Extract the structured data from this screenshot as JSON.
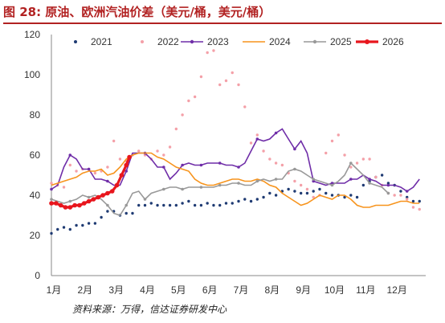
{
  "title": "图 28:  原油、欧洲汽油价差（美元/桶，美元/桶）",
  "source": "资料来源：万得，信达证券研发中心",
  "chart_data": {
    "type": "line",
    "x_ticks": [
      "1月",
      "2月",
      "3月",
      "4月",
      "5月",
      "6月",
      "7月",
      "8月",
      "9月",
      "10月",
      "11月",
      "12月"
    ],
    "ylim": [
      0,
      120
    ],
    "y_ticks": [
      0,
      20,
      40,
      60,
      80,
      100,
      120
    ],
    "grid": false,
    "legend_position": "top",
    "series": [
      {
        "name": "2021",
        "color": "#1f3b73",
        "style": "dots",
        "values": [
          [
            0.0,
            21
          ],
          [
            0.2,
            23
          ],
          [
            0.4,
            24
          ],
          [
            0.6,
            23
          ],
          [
            0.8,
            25
          ],
          [
            1.0,
            25
          ],
          [
            1.2,
            26
          ],
          [
            1.4,
            26
          ],
          [
            1.6,
            29
          ],
          [
            1.8,
            32
          ],
          [
            2.0,
            32
          ],
          [
            2.2,
            30
          ],
          [
            2.4,
            31
          ],
          [
            2.6,
            31
          ],
          [
            2.8,
            35
          ],
          [
            3.0,
            35
          ],
          [
            3.2,
            36
          ],
          [
            3.4,
            35
          ],
          [
            3.6,
            35
          ],
          [
            3.8,
            35
          ],
          [
            4.0,
            35
          ],
          [
            4.2,
            36
          ],
          [
            4.4,
            37
          ],
          [
            4.6,
            35
          ],
          [
            4.8,
            35
          ],
          [
            5.0,
            36
          ],
          [
            5.2,
            35
          ],
          [
            5.4,
            35
          ],
          [
            5.6,
            36
          ],
          [
            5.8,
            36
          ],
          [
            6.0,
            37
          ],
          [
            6.2,
            38
          ],
          [
            6.4,
            37
          ],
          [
            6.6,
            38
          ],
          [
            6.8,
            39
          ],
          [
            7.0,
            41
          ],
          [
            7.2,
            40
          ],
          [
            7.4,
            42
          ],
          [
            7.6,
            43
          ],
          [
            7.8,
            42
          ],
          [
            8.0,
            41
          ],
          [
            8.2,
            41
          ],
          [
            8.4,
            42
          ],
          [
            8.6,
            43
          ],
          [
            8.8,
            41
          ],
          [
            9.0,
            40
          ],
          [
            9.2,
            40
          ],
          [
            9.4,
            39
          ],
          [
            9.6,
            40
          ],
          [
            9.8,
            39
          ],
          [
            10.0,
            45
          ],
          [
            10.2,
            47
          ],
          [
            10.4,
            49
          ],
          [
            10.6,
            50
          ],
          [
            10.8,
            46
          ],
          [
            11.0,
            45
          ],
          [
            11.2,
            42
          ],
          [
            11.4,
            39
          ],
          [
            11.6,
            37
          ],
          [
            11.8,
            37
          ]
        ]
      },
      {
        "name": "2022",
        "color": "#f4a0a8",
        "style": "dots",
        "values": [
          [
            0.0,
            46
          ],
          [
            0.2,
            45
          ],
          [
            0.4,
            44
          ],
          [
            0.6,
            55
          ],
          [
            0.8,
            52
          ],
          [
            1.0,
            53
          ],
          [
            1.2,
            53
          ],
          [
            1.4,
            51
          ],
          [
            1.6,
            52
          ],
          [
            1.8,
            54
          ],
          [
            2.0,
            67
          ],
          [
            2.2,
            58
          ],
          [
            2.4,
            57
          ],
          [
            2.6,
            60
          ],
          [
            2.8,
            62
          ],
          [
            3.0,
            60
          ],
          [
            3.2,
            58
          ],
          [
            3.4,
            62
          ],
          [
            3.6,
            60
          ],
          [
            3.8,
            64
          ],
          [
            4.0,
            73
          ],
          [
            4.2,
            80
          ],
          [
            4.4,
            87
          ],
          [
            4.6,
            89
          ],
          [
            4.8,
            99
          ],
          [
            5.0,
            111
          ],
          [
            5.2,
            112
          ],
          [
            5.4,
            95
          ],
          [
            5.6,
            97
          ],
          [
            5.8,
            101
          ],
          [
            6.0,
            95
          ],
          [
            6.2,
            84
          ],
          [
            6.4,
            66
          ],
          [
            6.6,
            70
          ],
          [
            6.8,
            62
          ],
          [
            7.0,
            58
          ],
          [
            7.2,
            56
          ],
          [
            7.4,
            55
          ],
          [
            7.6,
            51
          ],
          [
            7.8,
            47
          ],
          [
            8.0,
            45
          ],
          [
            8.2,
            43
          ],
          [
            8.4,
            39
          ],
          [
            8.6,
            40
          ],
          [
            8.8,
            61
          ],
          [
            9.0,
            67
          ],
          [
            9.2,
            70
          ],
          [
            9.4,
            60
          ],
          [
            9.6,
            54
          ],
          [
            9.8,
            56
          ],
          [
            10.0,
            58
          ],
          [
            10.2,
            58
          ],
          [
            10.4,
            49
          ],
          [
            10.6,
            45
          ],
          [
            10.8,
            41
          ],
          [
            11.0,
            40
          ],
          [
            11.2,
            40
          ],
          [
            11.4,
            38
          ],
          [
            11.6,
            34
          ],
          [
            11.8,
            33
          ]
        ]
      },
      {
        "name": "2023",
        "color": "#6f2da8",
        "style": "line-markers",
        "values": [
          [
            0.0,
            43
          ],
          [
            0.2,
            45
          ],
          [
            0.4,
            54
          ],
          [
            0.6,
            60
          ],
          [
            0.8,
            58
          ],
          [
            1.0,
            53
          ],
          [
            1.2,
            53
          ],
          [
            1.4,
            48
          ],
          [
            1.6,
            48
          ],
          [
            1.8,
            47
          ],
          [
            2.0,
            45
          ],
          [
            2.2,
            45
          ],
          [
            2.4,
            52
          ],
          [
            2.6,
            61
          ],
          [
            2.8,
            61
          ],
          [
            3.0,
            61
          ],
          [
            3.2,
            58
          ],
          [
            3.4,
            54
          ],
          [
            3.6,
            54
          ],
          [
            3.8,
            48
          ],
          [
            4.0,
            51
          ],
          [
            4.2,
            55
          ],
          [
            4.4,
            56
          ],
          [
            4.6,
            55
          ],
          [
            4.8,
            55
          ],
          [
            5.0,
            56
          ],
          [
            5.2,
            56
          ],
          [
            5.4,
            56
          ],
          [
            5.6,
            55
          ],
          [
            5.8,
            55
          ],
          [
            6.0,
            54
          ],
          [
            6.2,
            56
          ],
          [
            6.4,
            62
          ],
          [
            6.6,
            68
          ],
          [
            6.8,
            67
          ],
          [
            7.0,
            68
          ],
          [
            7.2,
            71
          ],
          [
            7.4,
            73
          ],
          [
            7.6,
            68
          ],
          [
            7.8,
            63
          ],
          [
            8.0,
            67
          ],
          [
            8.2,
            61
          ],
          [
            8.4,
            47
          ],
          [
            8.6,
            46
          ],
          [
            8.8,
            45
          ],
          [
            9.0,
            46
          ],
          [
            9.2,
            46
          ],
          [
            9.4,
            46
          ],
          [
            9.6,
            48
          ],
          [
            9.8,
            48
          ],
          [
            10.0,
            50
          ],
          [
            10.2,
            48
          ],
          [
            10.4,
            47
          ],
          [
            10.6,
            45
          ],
          [
            10.8,
            45
          ],
          [
            11.0,
            45
          ],
          [
            11.2,
            44
          ],
          [
            11.4,
            42
          ],
          [
            11.6,
            44
          ],
          [
            11.8,
            48
          ]
        ]
      },
      {
        "name": "2024",
        "color": "#f7941d",
        "style": "line",
        "values": [
          [
            0.0,
            45
          ],
          [
            0.2,
            46
          ],
          [
            0.4,
            47
          ],
          [
            0.6,
            48
          ],
          [
            0.8,
            49
          ],
          [
            1.0,
            51
          ],
          [
            1.2,
            52
          ],
          [
            1.4,
            52
          ],
          [
            1.6,
            53
          ],
          [
            1.8,
            50
          ],
          [
            2.0,
            51
          ],
          [
            2.2,
            54
          ],
          [
            2.4,
            58
          ],
          [
            2.6,
            60
          ],
          [
            2.8,
            61
          ],
          [
            3.0,
            61
          ],
          [
            3.2,
            61
          ],
          [
            3.4,
            59
          ],
          [
            3.6,
            58
          ],
          [
            3.8,
            56
          ],
          [
            4.0,
            54
          ],
          [
            4.2,
            53
          ],
          [
            4.4,
            52
          ],
          [
            4.6,
            48
          ],
          [
            4.8,
            46
          ],
          [
            5.0,
            45
          ],
          [
            5.2,
            45
          ],
          [
            5.4,
            46
          ],
          [
            5.6,
            47
          ],
          [
            5.8,
            48
          ],
          [
            6.0,
            48
          ],
          [
            6.2,
            47
          ],
          [
            6.4,
            47
          ],
          [
            6.6,
            48
          ],
          [
            6.8,
            47
          ],
          [
            7.0,
            45
          ],
          [
            7.2,
            44
          ],
          [
            7.4,
            41
          ],
          [
            7.6,
            39
          ],
          [
            7.8,
            37
          ],
          [
            8.0,
            35
          ],
          [
            8.2,
            36
          ],
          [
            8.4,
            38
          ],
          [
            8.6,
            40
          ],
          [
            8.8,
            39
          ],
          [
            9.0,
            38
          ],
          [
            9.2,
            40
          ],
          [
            9.4,
            40
          ],
          [
            9.6,
            38
          ],
          [
            9.8,
            35
          ],
          [
            10.0,
            34
          ],
          [
            10.2,
            34
          ],
          [
            10.4,
            35
          ],
          [
            10.6,
            35
          ],
          [
            10.8,
            35
          ],
          [
            11.0,
            36
          ],
          [
            11.2,
            37
          ],
          [
            11.4,
            37
          ],
          [
            11.6,
            36
          ],
          [
            11.8,
            36
          ]
        ]
      },
      {
        "name": "2025",
        "color": "#999999",
        "style": "line-markers",
        "values": [
          [
            0.0,
            38
          ],
          [
            0.2,
            37
          ],
          [
            0.4,
            36
          ],
          [
            0.6,
            37
          ],
          [
            0.8,
            38
          ],
          [
            1.0,
            40
          ],
          [
            1.2,
            39
          ],
          [
            1.4,
            40
          ],
          [
            1.6,
            38
          ],
          [
            1.8,
            35
          ],
          [
            2.0,
            31
          ],
          [
            2.2,
            30
          ],
          [
            2.4,
            35
          ],
          [
            2.6,
            41
          ],
          [
            2.8,
            42
          ],
          [
            3.0,
            38
          ],
          [
            3.2,
            41
          ],
          [
            3.4,
            42
          ],
          [
            3.6,
            43
          ],
          [
            3.8,
            44
          ],
          [
            4.0,
            44
          ],
          [
            4.2,
            43
          ],
          [
            4.4,
            44
          ],
          [
            4.6,
            44
          ],
          [
            4.8,
            44
          ],
          [
            5.0,
            44
          ],
          [
            5.2,
            44
          ],
          [
            5.4,
            45
          ],
          [
            5.6,
            45
          ],
          [
            5.8,
            46
          ],
          [
            6.0,
            46
          ],
          [
            6.2,
            45
          ],
          [
            6.4,
            45
          ],
          [
            6.6,
            47
          ],
          [
            6.8,
            48
          ],
          [
            7.0,
            47
          ],
          [
            7.2,
            48
          ],
          [
            7.4,
            48
          ],
          [
            7.6,
            52
          ],
          [
            7.8,
            53
          ],
          [
            8.0,
            52
          ],
          [
            8.2,
            50
          ],
          [
            8.4,
            48
          ],
          [
            8.6,
            47
          ],
          [
            8.8,
            46
          ],
          [
            9.0,
            45
          ],
          [
            9.2,
            47
          ],
          [
            9.4,
            50
          ],
          [
            9.6,
            56
          ],
          [
            9.8,
            53
          ],
          [
            10.0,
            50
          ],
          [
            10.2,
            46
          ],
          [
            10.4,
            45
          ],
          [
            10.6,
            44
          ],
          [
            10.8,
            41
          ]
        ]
      },
      {
        "name": "2026",
        "color": "#e8161d",
        "style": "thick-line",
        "values": [
          [
            0.0,
            36
          ],
          [
            0.15,
            36
          ],
          [
            0.3,
            35
          ],
          [
            0.45,
            34
          ],
          [
            0.6,
            34
          ],
          [
            0.75,
            35
          ],
          [
            0.9,
            35
          ],
          [
            1.05,
            36
          ],
          [
            1.2,
            37
          ],
          [
            1.35,
            38
          ],
          [
            1.5,
            39
          ],
          [
            1.65,
            40
          ],
          [
            1.8,
            41
          ],
          [
            1.95,
            42
          ],
          [
            2.1,
            45
          ],
          [
            2.25,
            50
          ],
          [
            2.4,
            55
          ],
          [
            2.5,
            59
          ]
        ]
      }
    ]
  }
}
